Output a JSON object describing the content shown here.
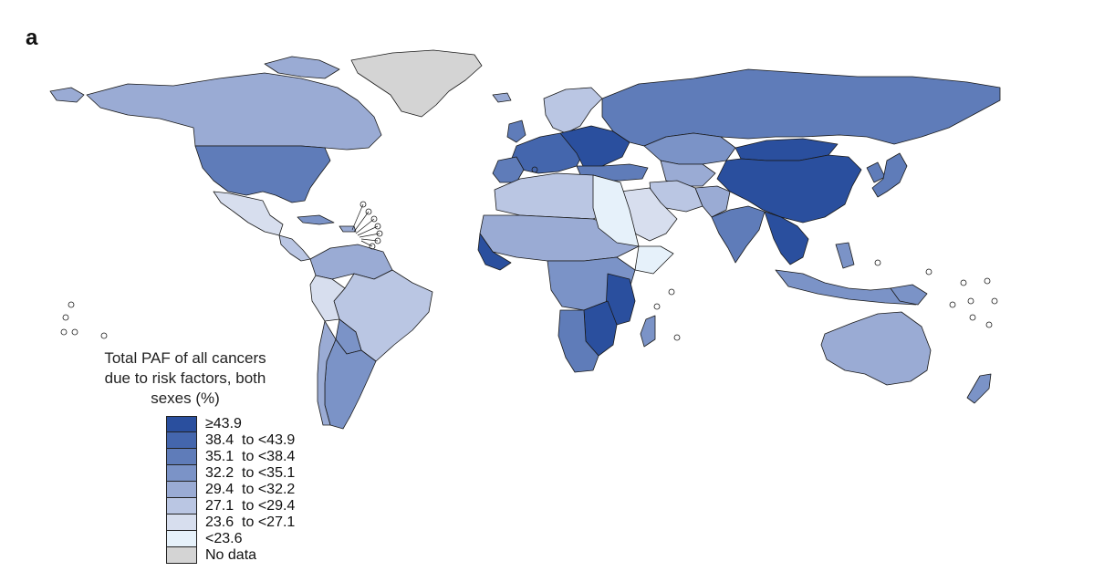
{
  "panel_label": "a",
  "legend": {
    "title_lines": [
      "Total PAF of all cancers",
      "due to risk factors, both",
      "sexes (%)"
    ],
    "classes": [
      {
        "label": "≥43.9",
        "color": "#2a4f9e"
      },
      {
        "label": "38.4  to <43.9",
        "color": "#4466ad"
      },
      {
        "label": "35.1  to <38.4",
        "color": "#5f7cb9"
      },
      {
        "label": "32.2  to <35.1",
        "color": "#7b93c7"
      },
      {
        "label": "29.4  to <32.2",
        "color": "#9aabd4"
      },
      {
        "label": "27.1  to <29.4",
        "color": "#bac6e3"
      },
      {
        "label": "23.6  to <27.1",
        "color": "#d7deee"
      },
      {
        "label": "<23.6",
        "color": "#e6f1fa"
      },
      {
        "label": "No data",
        "color": "#d4d4d4"
      }
    ]
  }
}
